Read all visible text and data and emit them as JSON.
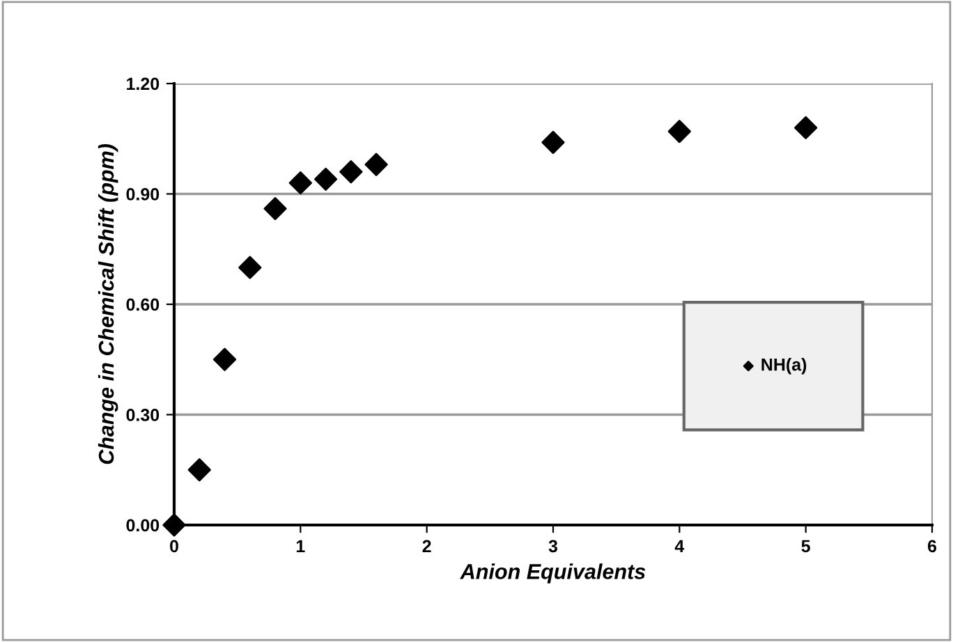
{
  "chart_data": {
    "type": "scatter",
    "xlabel": "Anion Equivalents",
    "ylabel": "Change in Chemical Shift (ppm)",
    "series": [
      {
        "name": "NH(a)",
        "color": "#000000",
        "x": [
          0,
          0.2,
          0.4,
          0.6,
          0.8,
          1.0,
          1.2,
          1.4,
          1.6,
          3,
          4,
          5
        ],
        "values": [
          0.0,
          0.15,
          0.45,
          0.7,
          0.86,
          0.93,
          0.94,
          0.96,
          0.98,
          1.04,
          1.07,
          1.08
        ]
      }
    ],
    "xlim": [
      0,
      6
    ],
    "xticks": [
      0,
      1,
      2,
      3,
      4,
      5,
      6
    ],
    "ylim": [
      0,
      1.2
    ],
    "yticks": [
      {
        "value": 0,
        "label": "0.00"
      },
      {
        "value": 0.3,
        "label": "0.30"
      },
      {
        "value": 0.6,
        "label": "0.60"
      },
      {
        "value": 0.9,
        "label": "0.90"
      },
      {
        "value": 1.2,
        "label": "1.20"
      }
    ],
    "grid": "y",
    "legend": "right",
    "marker": "diamond"
  }
}
